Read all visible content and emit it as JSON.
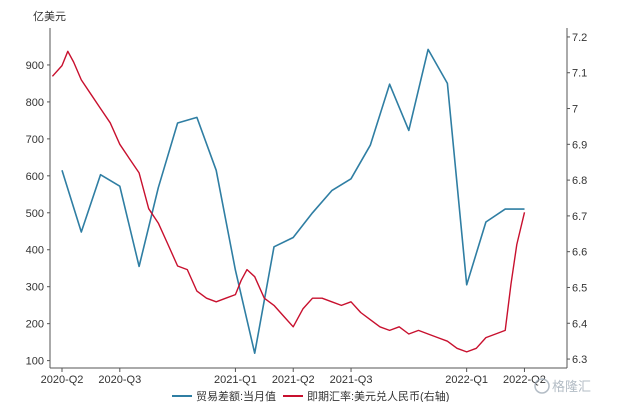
{
  "chart_data": {
    "type": "line",
    "left_axis_unit": "亿美元",
    "left_axis": {
      "ylim": [
        80,
        1000
      ],
      "ticks": [
        100,
        200,
        300,
        400,
        500,
        600,
        700,
        800,
        900
      ]
    },
    "right_axis": {
      "ylim": [
        6.275,
        7.225
      ],
      "ticks": [
        "6.3",
        "6.4",
        "6.5",
        "6.6",
        "6.7",
        "6.8",
        "6.9",
        "7",
        "7.1",
        "7.2"
      ],
      "tick_values": [
        6.3,
        6.4,
        6.5,
        6.6,
        6.7,
        6.8,
        6.9,
        7.0,
        7.1,
        7.2
      ]
    },
    "x_axis": {
      "range": [
        0,
        26
      ],
      "tick_labels": [
        {
          "label": "2020-Q2",
          "pos": 0
        },
        {
          "label": "2020-Q3",
          "pos": 3
        },
        {
          "label": "2021-Q1",
          "pos": 9
        },
        {
          "label": "2021-Q2",
          "pos": 12
        },
        {
          "label": "2021-Q3",
          "pos": 15
        },
        {
          "label": "2022-Q1",
          "pos": 21
        },
        {
          "label": "2022-Q2",
          "pos": 24
        }
      ]
    },
    "legend_position": "bottom",
    "series": [
      {
        "name": "贸易差额:当月值",
        "axis": "left",
        "color": "#2f7ea3",
        "x": [
          0,
          1,
          2,
          3,
          4,
          5,
          6,
          7,
          8,
          9,
          10,
          11,
          12,
          13,
          14,
          15,
          16,
          17,
          18,
          19,
          20,
          21,
          22,
          23,
          24
        ],
        "values": [
          615,
          448,
          603,
          572,
          355,
          568,
          743,
          758,
          615,
          345,
          120,
          408,
          433,
          500,
          560,
          592,
          683,
          848,
          723,
          942,
          850,
          305,
          475,
          510,
          510
        ]
      },
      {
        "name": "即期汇率:美元兑人民币(右轴)",
        "axis": "right",
        "color": "#c8102e",
        "x": [
          -0.5,
          0,
          0.3,
          0.6,
          1,
          1.5,
          2,
          2.5,
          3,
          3.5,
          4,
          4.5,
          5,
          5.5,
          6,
          6.5,
          7,
          7.5,
          8,
          8.5,
          9,
          9.3,
          9.6,
          10,
          10.5,
          11,
          11.5,
          12,
          12.5,
          13,
          13.5,
          14,
          14.5,
          15,
          15.5,
          16,
          16.5,
          17,
          17.5,
          18,
          18.5,
          19,
          19.5,
          20,
          20.5,
          21,
          21.5,
          22,
          22.5,
          23,
          23.3,
          23.6,
          24
        ],
        "values": [
          7.09,
          7.12,
          7.16,
          7.13,
          7.08,
          7.04,
          7.0,
          6.96,
          6.9,
          6.86,
          6.82,
          6.72,
          6.68,
          6.62,
          6.56,
          6.55,
          6.49,
          6.47,
          6.46,
          6.47,
          6.48,
          6.52,
          6.55,
          6.53,
          6.47,
          6.45,
          6.42,
          6.39,
          6.44,
          6.47,
          6.47,
          6.46,
          6.45,
          6.46,
          6.43,
          6.41,
          6.39,
          6.38,
          6.39,
          6.37,
          6.38,
          6.37,
          6.36,
          6.35,
          6.33,
          6.32,
          6.33,
          6.36,
          6.37,
          6.38,
          6.51,
          6.62,
          6.71
        ]
      }
    ]
  },
  "watermark": "格隆汇"
}
